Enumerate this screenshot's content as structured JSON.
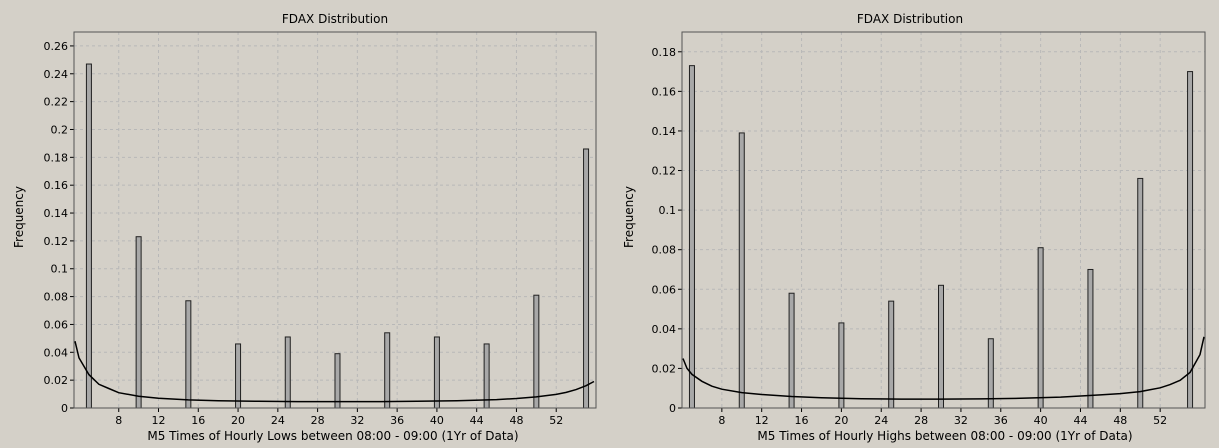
{
  "colors": {
    "background": "#d4d0c8",
    "plot_background": "#d4d0c8",
    "grid": "#b8b8b8",
    "bar_fill": "#a8a8a8",
    "bar_stroke": "#202020",
    "curve": "#000000",
    "text": "#000000"
  },
  "chart_data": [
    {
      "type": "bar",
      "title": "FDAX Distribution",
      "xlabel": "M5 Times of Hourly Lows between 08:00 - 09:00 (1Yr of Data)",
      "ylabel": "Frequency",
      "xlim": [
        3.5,
        56
      ],
      "ylim": [
        0,
        0.27
      ],
      "x_ticks": [
        "8",
        "12",
        "16",
        "20",
        "24",
        "28",
        "32",
        "36",
        "40",
        "44",
        "48",
        "52"
      ],
      "y_ticks": [
        "0",
        "0.02",
        "0.04",
        "0.06",
        "0.08",
        "0.1",
        "0.12",
        "0.14",
        "0.16",
        "0.18",
        "0.2",
        "0.22",
        "0.24",
        "0.26"
      ],
      "grid": true,
      "x": [
        5,
        10,
        15,
        20,
        25,
        30,
        35,
        40,
        45,
        50,
        55
      ],
      "values": [
        0.247,
        0.123,
        0.077,
        0.046,
        0.051,
        0.039,
        0.054,
        0.051,
        0.046,
        0.081,
        0.186
      ],
      "fit_curve": {
        "x": [
          3.6,
          4,
          5,
          6,
          7,
          8,
          10,
          12,
          15,
          18,
          22,
          26,
          30,
          34,
          38,
          42,
          46,
          48,
          50,
          52,
          53,
          54,
          55,
          55.8
        ],
        "y": [
          0.048,
          0.036,
          0.024,
          0.017,
          0.014,
          0.011,
          0.0085,
          0.007,
          0.0058,
          0.0052,
          0.0048,
          0.0046,
          0.0046,
          0.0046,
          0.0048,
          0.0052,
          0.006,
          0.0068,
          0.008,
          0.0098,
          0.0112,
          0.0132,
          0.016,
          0.019
        ]
      }
    },
    {
      "type": "bar",
      "title": "FDAX Distribution",
      "xlabel": "M5 Times of Hourly Highs between 08:00 - 09:00 (1Yr of Data)",
      "ylabel": "Frequency",
      "xlim": [
        4,
        56.5
      ],
      "ylim": [
        0,
        0.19
      ],
      "x_ticks": [
        "8",
        "12",
        "16",
        "20",
        "24",
        "28",
        "32",
        "36",
        "40",
        "44",
        "48",
        "52"
      ],
      "y_ticks": [
        "0",
        "0.02",
        "0.04",
        "0.06",
        "0.08",
        "0.1",
        "0.12",
        "0.14",
        "0.16",
        "0.18"
      ],
      "grid": true,
      "x": [
        5,
        10,
        15,
        20,
        25,
        30,
        35,
        40,
        45,
        50,
        55
      ],
      "values": [
        0.173,
        0.139,
        0.058,
        0.043,
        0.054,
        0.062,
        0.035,
        0.081,
        0.07,
        0.116,
        0.17
      ],
      "fit_curve": {
        "x": [
          4.1,
          4.5,
          5,
          6,
          7,
          8,
          10,
          12,
          15,
          18,
          22,
          26,
          30,
          34,
          38,
          42,
          46,
          48,
          50,
          52,
          53,
          54,
          55,
          56,
          56.4
        ],
        "y": [
          0.025,
          0.02,
          0.017,
          0.0135,
          0.011,
          0.0095,
          0.0078,
          0.0068,
          0.0058,
          0.0052,
          0.0047,
          0.0045,
          0.0045,
          0.0046,
          0.0049,
          0.0055,
          0.0066,
          0.0073,
          0.0083,
          0.0102,
          0.0118,
          0.014,
          0.018,
          0.027,
          0.036
        ]
      }
    }
  ]
}
